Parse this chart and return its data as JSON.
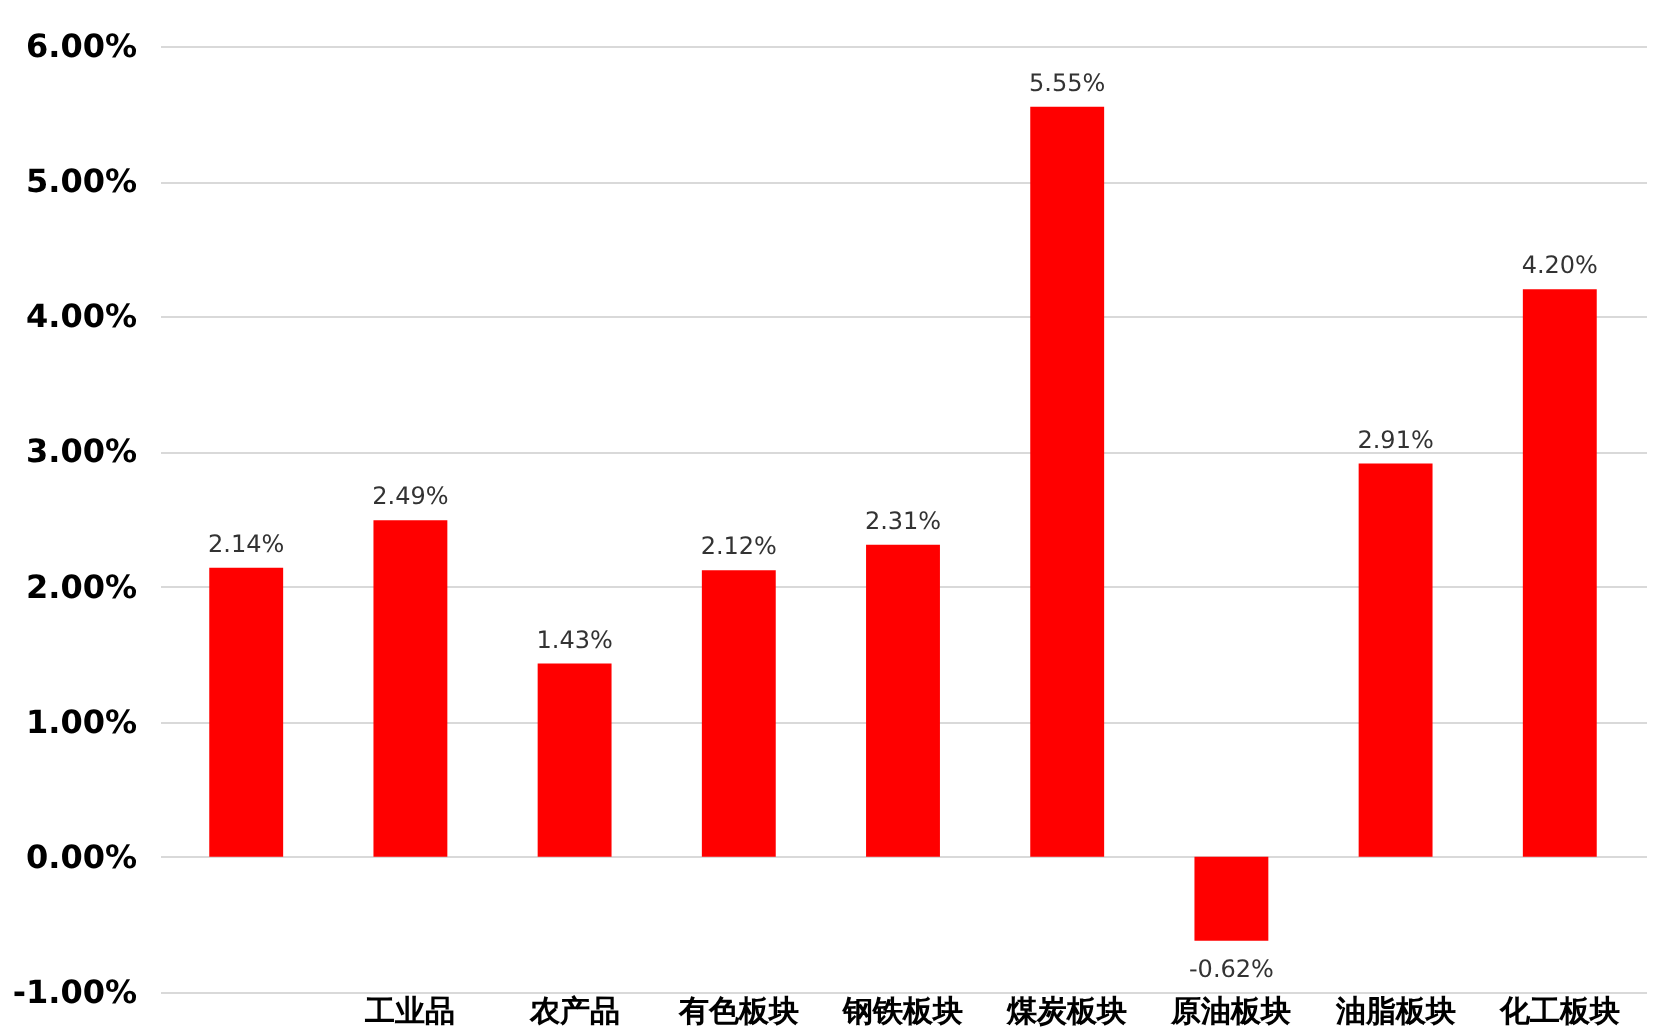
{
  "chart_data": {
    "type": "bar",
    "categories": [
      null,
      "工业品",
      "农产品",
      "有色板块",
      "钢铁板块",
      "煤炭板块",
      "原油板块",
      "油脂板块",
      "化工板块"
    ],
    "values": [
      2.14,
      2.49,
      1.43,
      2.12,
      2.31,
      5.55,
      -0.62,
      2.91,
      4.2
    ],
    "value_labels": [
      "2.14%",
      "2.49%",
      "1.43%",
      "2.12%",
      "2.31%",
      "5.55%",
      "-0.62%",
      "2.91%",
      "4.20%"
    ],
    "color": "#ff0000",
    "ylim": [
      -1,
      6
    ],
    "yticks": [
      {
        "value": -1,
        "label": "-1.00%"
      },
      {
        "value": 0,
        "label": "0.00%"
      },
      {
        "value": 1,
        "label": "1.00%"
      },
      {
        "value": 2,
        "label": "2.00%"
      },
      {
        "value": 3,
        "label": "3.00%"
      },
      {
        "value": 4,
        "label": "4.00%"
      },
      {
        "value": 5,
        "label": "5.00%"
      },
      {
        "value": 6,
        "label": "6.00%"
      }
    ],
    "grid": "y"
  }
}
